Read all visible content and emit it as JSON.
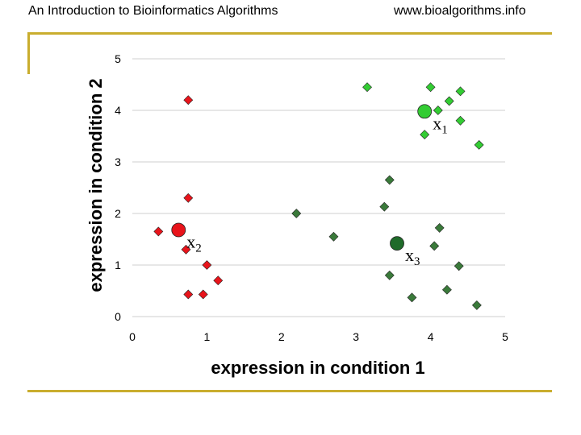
{
  "header": {
    "left": "An Introduction to Bioinformatics Algorithms",
    "right": "www.bioalgorithms.info"
  },
  "colors": {
    "accent_rule": "#c9ad2e",
    "cluster_red": "#e8141b",
    "cluster_light_green": "#33cc33",
    "cluster_dark_green": "#3a7a3a",
    "centroid_dark": "#1f6b2a",
    "gridline": "#cfcfcf"
  },
  "chart_data": {
    "type": "scatter",
    "title": "",
    "xlabel": "expression in condition 1",
    "ylabel": "expression in condition 2",
    "xlim": [
      0,
      5
    ],
    "ylim": [
      0,
      5
    ],
    "xticks": [
      "0",
      "1",
      "2",
      "3",
      "4",
      "5"
    ],
    "yticks": [
      "0",
      "1",
      "2",
      "3",
      "4",
      "5"
    ],
    "grid": "horizontal",
    "series": [
      {
        "color": "#e8141b",
        "marker": "diamond",
        "points": [
          {
            "x": 0.75,
            "y": 4.2
          },
          {
            "x": 0.75,
            "y": 2.3
          },
          {
            "x": 0.35,
            "y": 1.65
          },
          {
            "x": 0.72,
            "y": 1.3
          },
          {
            "x": 1.0,
            "y": 1.0
          },
          {
            "x": 1.15,
            "y": 0.7
          },
          {
            "x": 0.75,
            "y": 0.43
          },
          {
            "x": 0.95,
            "y": 0.43
          }
        ]
      },
      {
        "color": "#33cc33",
        "marker": "diamond",
        "points": [
          {
            "x": 3.15,
            "y": 4.45
          },
          {
            "x": 4.0,
            "y": 4.45
          },
          {
            "x": 4.4,
            "y": 4.37
          },
          {
            "x": 4.25,
            "y": 4.18
          },
          {
            "x": 4.1,
            "y": 4.0
          },
          {
            "x": 4.4,
            "y": 3.8
          },
          {
            "x": 3.92,
            "y": 3.53
          },
          {
            "x": 4.65,
            "y": 3.33
          }
        ]
      },
      {
        "color": "#3a7a3a",
        "marker": "diamond",
        "points": [
          {
            "x": 2.2,
            "y": 2.0
          },
          {
            "x": 2.7,
            "y": 1.55
          },
          {
            "x": 3.45,
            "y": 2.65
          },
          {
            "x": 3.38,
            "y": 2.13
          },
          {
            "x": 4.12,
            "y": 1.72
          },
          {
            "x": 4.05,
            "y": 1.37
          },
          {
            "x": 4.38,
            "y": 0.98
          },
          {
            "x": 3.45,
            "y": 0.8
          },
          {
            "x": 3.75,
            "y": 0.37
          },
          {
            "x": 4.22,
            "y": 0.52
          },
          {
            "x": 4.62,
            "y": 0.22
          }
        ]
      }
    ],
    "centroids": [
      {
        "label": "x",
        "sub": "1",
        "x": 3.92,
        "y": 3.98,
        "color": "#33cc33"
      },
      {
        "label": "x",
        "sub": "2",
        "x": 0.62,
        "y": 1.68,
        "color": "#e8141b"
      },
      {
        "label": "x",
        "sub": "3",
        "x": 3.55,
        "y": 1.42,
        "color": "#1f6b2a"
      }
    ]
  }
}
